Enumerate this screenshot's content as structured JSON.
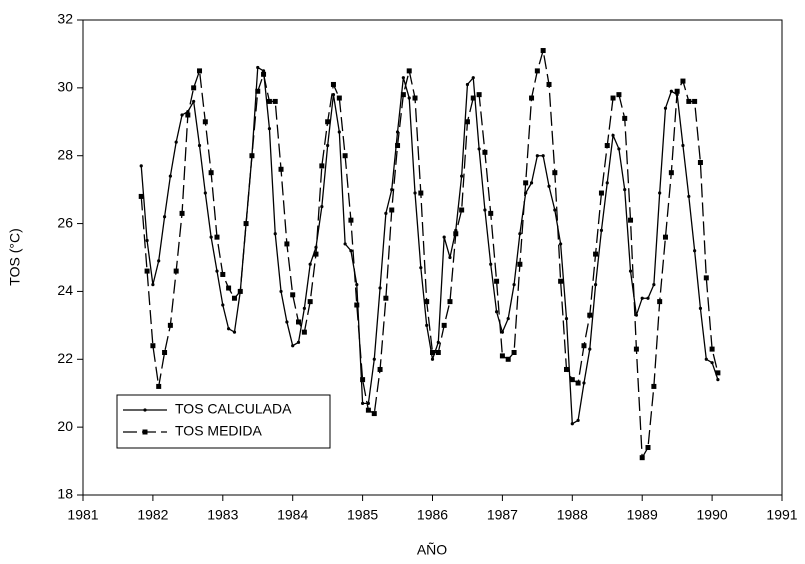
{
  "chart_data": {
    "type": "line",
    "xlabel": "AÑO",
    "ylabel": "TOS (°C)",
    "x": [
      1981.833,
      1981.917,
      1982.0,
      1982.083,
      1982.167,
      1982.25,
      1982.333,
      1982.417,
      1982.5,
      1982.583,
      1982.667,
      1982.75,
      1982.833,
      1982.917,
      1983.0,
      1983.083,
      1983.167,
      1983.25,
      1983.333,
      1983.417,
      1983.5,
      1983.583,
      1983.667,
      1983.75,
      1983.833,
      1983.917,
      1984.0,
      1984.083,
      1984.167,
      1984.25,
      1984.333,
      1984.417,
      1984.5,
      1984.583,
      1984.667,
      1984.75,
      1984.833,
      1984.917,
      1985.0,
      1985.083,
      1985.167,
      1985.25,
      1985.333,
      1985.417,
      1985.5,
      1985.583,
      1985.667,
      1985.75,
      1985.833,
      1985.917,
      1986.0,
      1986.083,
      1986.167,
      1986.25,
      1986.333,
      1986.417,
      1986.5,
      1986.583,
      1986.667,
      1986.75,
      1986.833,
      1986.917,
      1987.0,
      1987.083,
      1987.167,
      1987.25,
      1987.333,
      1987.417,
      1987.5,
      1987.583,
      1987.667,
      1987.75,
      1987.833,
      1987.917,
      1988.0,
      1988.083,
      1988.167,
      1988.25,
      1988.333,
      1988.417,
      1988.5,
      1988.583,
      1988.667,
      1988.75,
      1988.833,
      1988.917,
      1989.0,
      1989.083,
      1989.167,
      1989.25,
      1989.333,
      1989.417,
      1989.5,
      1989.583,
      1989.667,
      1989.75,
      1989.833,
      1989.917,
      1990.0,
      1990.083
    ],
    "series": [
      {
        "name": "TOS CALCULADA",
        "color": "#000000",
        "linestyle": "solid",
        "marker": "dot",
        "values": [
          27.7,
          25.5,
          24.2,
          24.9,
          26.2,
          27.4,
          28.4,
          29.2,
          29.3,
          29.6,
          28.3,
          26.9,
          25.6,
          24.6,
          23.6,
          22.9,
          22.8,
          24.0,
          26.0,
          28.0,
          30.6,
          30.5,
          28.8,
          25.7,
          24.0,
          23.1,
          22.4,
          22.5,
          23.5,
          24.8,
          25.3,
          26.5,
          28.3,
          29.8,
          28.7,
          25.4,
          25.2,
          24.2,
          20.7,
          20.7,
          22.0,
          24.1,
          26.3,
          27.0,
          28.7,
          30.3,
          29.7,
          26.9,
          24.7,
          23.0,
          22.0,
          22.5,
          25.6,
          25.0,
          25.8,
          27.4,
          30.1,
          30.3,
          28.2,
          26.4,
          24.8,
          23.4,
          22.8,
          23.2,
          24.2,
          25.7,
          26.9,
          27.2,
          28.0,
          28.0,
          27.1,
          26.4,
          25.4,
          23.2,
          20.1,
          20.2,
          21.3,
          22.3,
          24.2,
          25.8,
          27.2,
          28.6,
          28.2,
          27.0,
          24.6,
          23.3,
          23.8,
          23.8,
          24.2,
          26.9,
          29.4,
          29.9,
          29.8,
          28.3,
          26.8,
          25.2,
          23.5,
          22.0,
          21.9,
          21.4
        ]
      },
      {
        "name": "TOS MEDIDA",
        "color": "#000000",
        "linestyle": "dashed",
        "marker": "square",
        "values": [
          26.8,
          24.6,
          22.4,
          21.2,
          22.2,
          23.0,
          24.6,
          26.3,
          29.2,
          30.0,
          30.5,
          29.0,
          27.5,
          25.6,
          24.5,
          24.1,
          23.8,
          24.0,
          26.0,
          28.0,
          29.9,
          30.4,
          29.6,
          29.6,
          27.6,
          25.4,
          23.9,
          23.1,
          22.8,
          23.7,
          25.1,
          27.7,
          29.0,
          30.1,
          29.7,
          28.0,
          26.1,
          23.6,
          21.4,
          20.5,
          20.4,
          21.7,
          23.8,
          26.4,
          28.3,
          29.8,
          30.5,
          29.7,
          26.9,
          23.7,
          22.2,
          22.2,
          23.0,
          23.7,
          25.7,
          26.4,
          29.0,
          29.7,
          29.8,
          28.1,
          26.3,
          24.3,
          22.1,
          22.0,
          22.2,
          24.8,
          27.2,
          29.7,
          30.5,
          31.1,
          30.1,
          27.5,
          24.3,
          21.7,
          21.4,
          21.3,
          22.4,
          23.3,
          25.1,
          26.9,
          28.3,
          29.7,
          29.8,
          29.1,
          26.1,
          22.3,
          19.1,
          19.4,
          21.2,
          23.7,
          25.6,
          27.5,
          29.9,
          30.2,
          29.6,
          29.6,
          27.8,
          24.4,
          22.3,
          21.6
        ]
      }
    ],
    "xlim": [
      1981,
      1991
    ],
    "xticks": [
      1981,
      1982,
      1983,
      1984,
      1985,
      1986,
      1987,
      1988,
      1989,
      1990,
      1991
    ],
    "ylim": [
      18,
      32
    ],
    "yticks": [
      18,
      20,
      22,
      24,
      26,
      28,
      30,
      32
    ],
    "grid": false,
    "legend": "lower left"
  }
}
